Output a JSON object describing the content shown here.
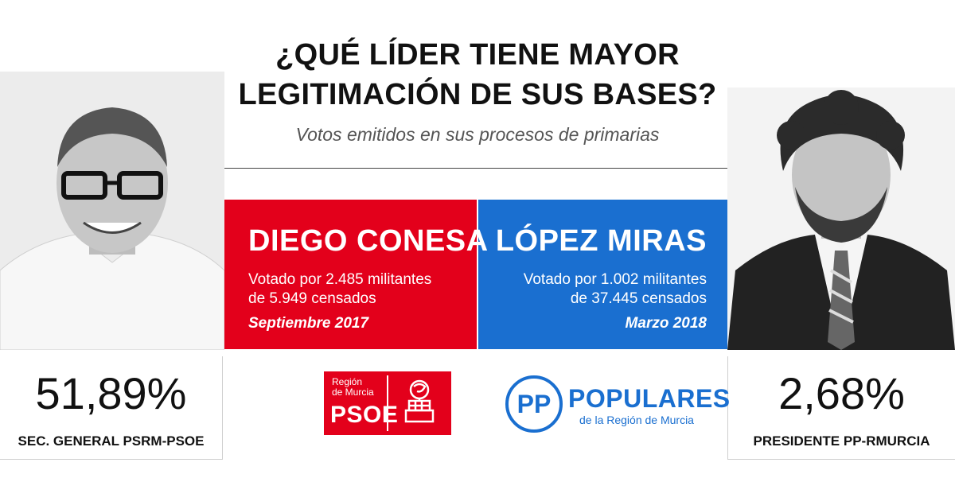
{
  "header": {
    "title_line1": "¿QUÉ LÍDER TIENE MAYOR",
    "title_line2": "LEGITIMACIÓN DE SUS BASES?",
    "subtitle": "Votos emitidos en sus procesos de primarias"
  },
  "left": {
    "name": "DIEGO CONESA",
    "line1": "Votado por 2.485 militantes",
    "line2": "de 5.949 censados",
    "date": "Septiembre 2017",
    "percent": "51,89%",
    "role": "SEC. GENERAL PSRM-PSOE",
    "color": "#e3001b"
  },
  "right": {
    "name": "LÓPEZ MIRAS",
    "line1": "Votado por 1.002 militantes",
    "line2": "de 37.445 censados",
    "date": "Marzo 2018",
    "percent": "2,68%",
    "role": "PRESIDENTE PP-RMURCIA",
    "color": "#1a6fd0"
  },
  "logos": {
    "psoe_line1": "Región",
    "psoe_line2": "de Murcia",
    "psoe_main": "PSOE",
    "pp_letters": "PP",
    "pp_main": "POPULARES",
    "pp_sub": "de la Región de Murcia"
  },
  "icons": {
    "left_photo": "portrait-photo",
    "right_photo": "portrait-photo",
    "psoe_logo": "rose-fist-icon",
    "pp_logo": "pp-circle-logo"
  }
}
